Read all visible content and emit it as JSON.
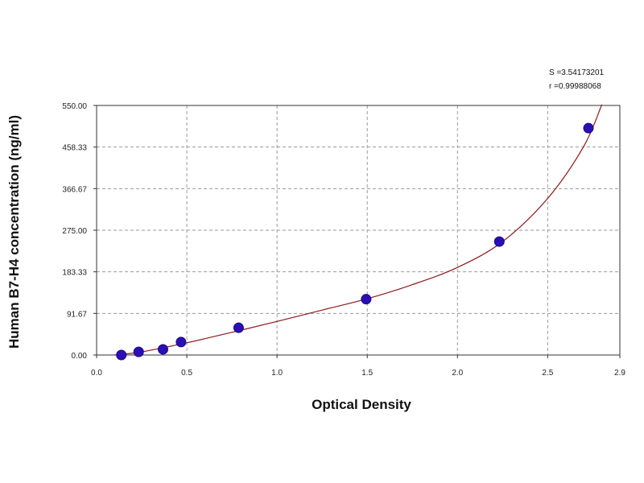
{
  "chart_data": {
    "type": "scatter",
    "title": "",
    "xlabel": "Optical Density",
    "ylabel": "Human  B7-H4 concentration (ng/ml)",
    "xlim": [
      0,
      2.9
    ],
    "ylim": [
      0,
      550
    ],
    "x_ticks": [
      0,
      0.5,
      1.0,
      1.5,
      2.0,
      2.5,
      2.9
    ],
    "x_tick_labels": [
      "0.0",
      "0.5",
      "1.0",
      "1.5",
      "2.0",
      "2.5",
      "2.9"
    ],
    "y_ticks": [
      0,
      91.67,
      183.33,
      275,
      366.67,
      458.33,
      550
    ],
    "y_tick_labels": [
      "0.00",
      "91.67",
      "183.33",
      "275.00",
      "366.67",
      "458.33",
      "550.00"
    ],
    "grid": true,
    "series": [
      {
        "type": "scatter",
        "x": [
          0.137,
          0.233,
          0.368,
          0.468,
          0.787,
          1.494,
          2.232,
          2.726
        ],
        "y": [
          0,
          6.9,
          12.5,
          28.5,
          60,
          123,
          250,
          500
        ],
        "color": "#2a0fb8"
      },
      {
        "type": "line",
        "x": [
          0.1,
          0.25,
          0.5,
          0.75,
          1.0,
          1.25,
          1.5,
          1.75,
          2.0,
          2.25,
          2.5,
          2.7,
          2.8
        ],
        "y": [
          0,
          7,
          27,
          50,
          74,
          99,
          124,
          155,
          193,
          250,
          345,
          460,
          552
        ],
        "color": "#8b1a1a"
      }
    ],
    "annotations": [
      "S =3.54173201",
      "r =0.99988068"
    ]
  }
}
